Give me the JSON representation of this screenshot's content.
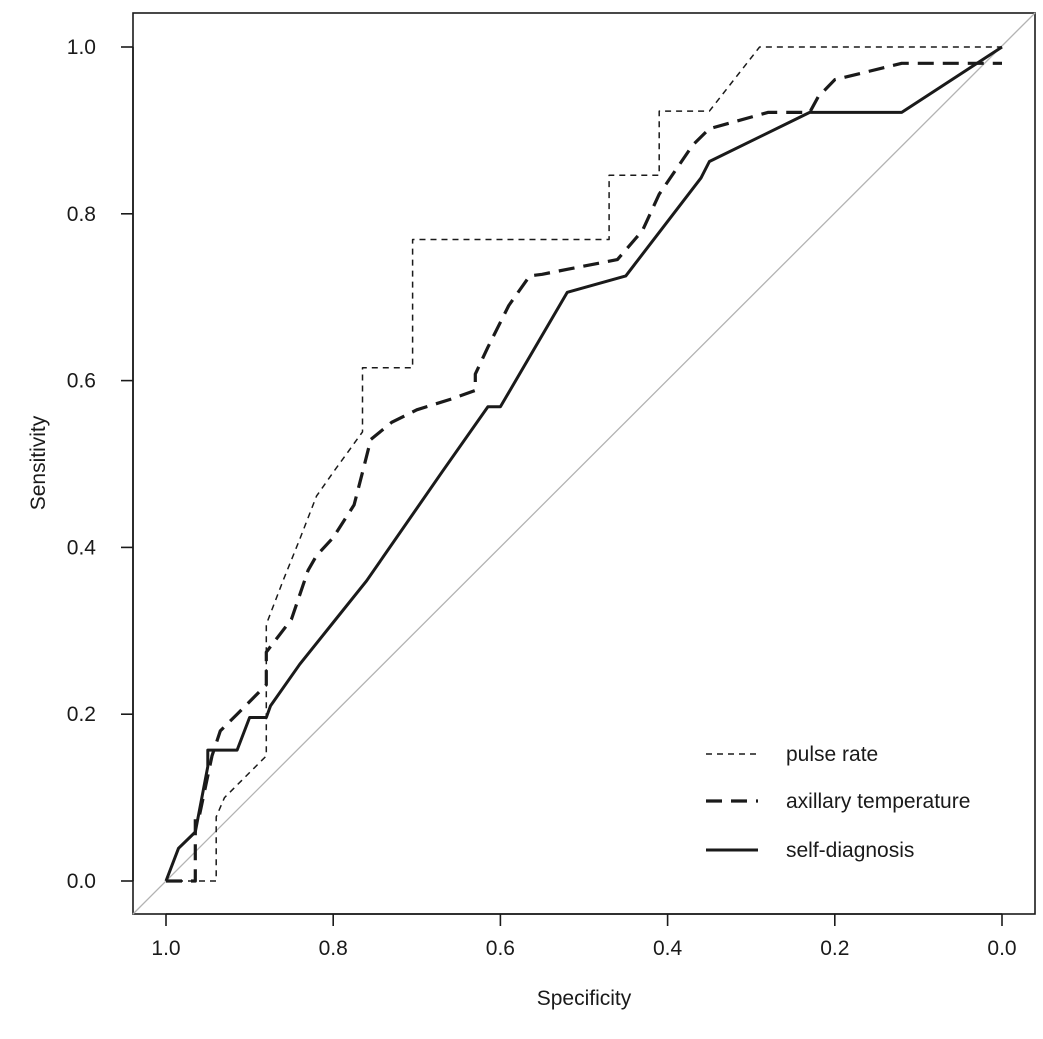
{
  "chart_data": {
    "type": "line",
    "title": "",
    "xlabel": "Specificity",
    "ylabel": "Sensitivity",
    "xlim": [
      1.0,
      0.0
    ],
    "ylim": [
      0.0,
      1.0
    ],
    "x_ticks": [
      "1.0",
      "0.8",
      "0.6",
      "0.4",
      "0.2",
      "0.0"
    ],
    "y_ticks": [
      "0.0",
      "0.2",
      "0.4",
      "0.6",
      "0.8",
      "1.0"
    ],
    "grid": false,
    "legend_position": "bottom-right",
    "reference_line": {
      "from": [
        1.0,
        0.0
      ],
      "to": [
        0.0,
        1.0
      ],
      "color": "#b3b3b3"
    },
    "series": [
      {
        "name": "pulse rate",
        "style": "fine-dashed",
        "color": "#1a1a1a",
        "x": [
          1.0,
          0.94,
          0.94,
          0.94,
          0.93,
          0.88,
          0.88,
          0.88,
          0.86,
          0.84,
          0.82,
          0.8,
          0.765,
          0.765,
          0.705,
          0.705,
          0.47,
          0.47,
          0.41,
          0.41,
          0.35,
          0.29,
          0.0
        ],
        "y": [
          0.0,
          0.0,
          0.0769,
          0.0769,
          0.1,
          0.15,
          0.2308,
          0.3077,
          0.36,
          0.41,
          0.4615,
          0.49,
          0.5385,
          0.6154,
          0.6154,
          0.7692,
          0.7692,
          0.8462,
          0.8462,
          0.9231,
          0.9231,
          1.0,
          1.0
        ]
      },
      {
        "name": "axillary temperature",
        "style": "bold-dashed",
        "color": "#1a1a1a",
        "x": [
          1.0,
          0.98,
          0.965,
          0.965,
          0.96,
          0.945,
          0.935,
          0.915,
          0.88,
          0.88,
          0.85,
          0.83,
          0.82,
          0.8,
          0.775,
          0.765,
          0.755,
          0.73,
          0.7,
          0.66,
          0.63,
          0.63,
          0.615,
          0.59,
          0.565,
          0.55,
          0.52,
          0.46,
          0.43,
          0.41,
          0.37,
          0.35,
          0.28,
          0.23,
          0.22,
          0.2,
          0.12,
          0.0
        ],
        "y": [
          0.0,
          0.0,
          0.0,
          0.0784,
          0.0784,
          0.15,
          0.18,
          0.2,
          0.2353,
          0.2745,
          0.3137,
          0.3725,
          0.39,
          0.4118,
          0.451,
          0.49,
          0.5294,
          0.55,
          0.565,
          0.5775,
          0.5882,
          0.6078,
          0.64,
          0.69,
          0.7255,
          0.7275,
          0.7335,
          0.7451,
          0.78,
          0.8235,
          0.8824,
          0.902,
          0.9216,
          0.9216,
          0.94,
          0.9608,
          0.9804,
          0.9804
        ]
      },
      {
        "name": "self-diagnosis",
        "style": "solid",
        "color": "#1a1a1a",
        "x": [
          1.0,
          0.985,
          0.965,
          0.95,
          0.95,
          0.915,
          0.9,
          0.88,
          0.875,
          0.84,
          0.8,
          0.76,
          0.67,
          0.615,
          0.6,
          0.52,
          0.45,
          0.36,
          0.35,
          0.23,
          0.12,
          0.0
        ],
        "y": [
          0.0,
          0.0392,
          0.0588,
          0.1373,
          0.1569,
          0.1569,
          0.1961,
          0.1961,
          0.21,
          0.26,
          0.31,
          0.36,
          0.4902,
          0.5686,
          0.5686,
          0.7059,
          0.7255,
          0.8431,
          0.8627,
          0.9216,
          0.9216,
          1.0
        ]
      }
    ]
  }
}
